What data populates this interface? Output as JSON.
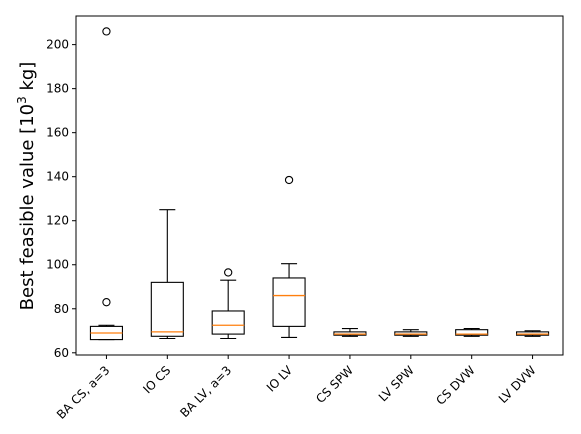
{
  "chart_data": {
    "type": "boxplot",
    "ylabel": {
      "prefix": "Best feasible value [10",
      "sup": "3",
      "suffix": " kg]"
    },
    "xlabel": "",
    "ylim": [
      59,
      213
    ],
    "yticks": [
      60,
      80,
      100,
      120,
      140,
      160,
      180,
      200
    ],
    "grid": false,
    "colors": {
      "median": "#ff7f0e",
      "box": "#000000",
      "background": "#ffffff"
    },
    "categories": [
      "BA CS, a=3",
      "IO CS",
      "BA LV, a=3",
      "IO LV",
      "CS SPW",
      "LV SPW",
      "CS DVW",
      "LV DVW"
    ],
    "boxes": [
      {
        "category": "BA CS, a=3",
        "whisker_low": 66,
        "q1": 66,
        "median": 69,
        "q3": 72,
        "whisker_high": 72.5,
        "outliers": [
          83,
          206
        ]
      },
      {
        "category": "IO CS",
        "whisker_low": 66.5,
        "q1": 67.5,
        "median": 69.5,
        "q3": 92,
        "whisker_high": 125,
        "outliers": []
      },
      {
        "category": "BA LV, a=3",
        "whisker_low": 66.5,
        "q1": 68.5,
        "median": 72.5,
        "q3": 79,
        "whisker_high": 93,
        "outliers": [
          96.5
        ]
      },
      {
        "category": "IO LV",
        "whisker_low": 67,
        "q1": 72,
        "median": 86,
        "q3": 94,
        "whisker_high": 100.5,
        "outliers": [
          138.5
        ]
      },
      {
        "category": "CS SPW",
        "whisker_low": 67.5,
        "q1": 68,
        "median": 68.5,
        "q3": 69.5,
        "whisker_high": 71,
        "outliers": []
      },
      {
        "category": "LV SPW",
        "whisker_low": 67.5,
        "q1": 68,
        "median": 68.5,
        "q3": 69.5,
        "whisker_high": 70.5,
        "outliers": []
      },
      {
        "category": "CS DVW",
        "whisker_low": 67.5,
        "q1": 68,
        "median": 68.5,
        "q3": 70.5,
        "whisker_high": 71,
        "outliers": []
      },
      {
        "category": "LV DVW",
        "whisker_low": 67.5,
        "q1": 68,
        "median": 68.5,
        "q3": 69.5,
        "whisker_high": 70,
        "outliers": []
      }
    ]
  }
}
